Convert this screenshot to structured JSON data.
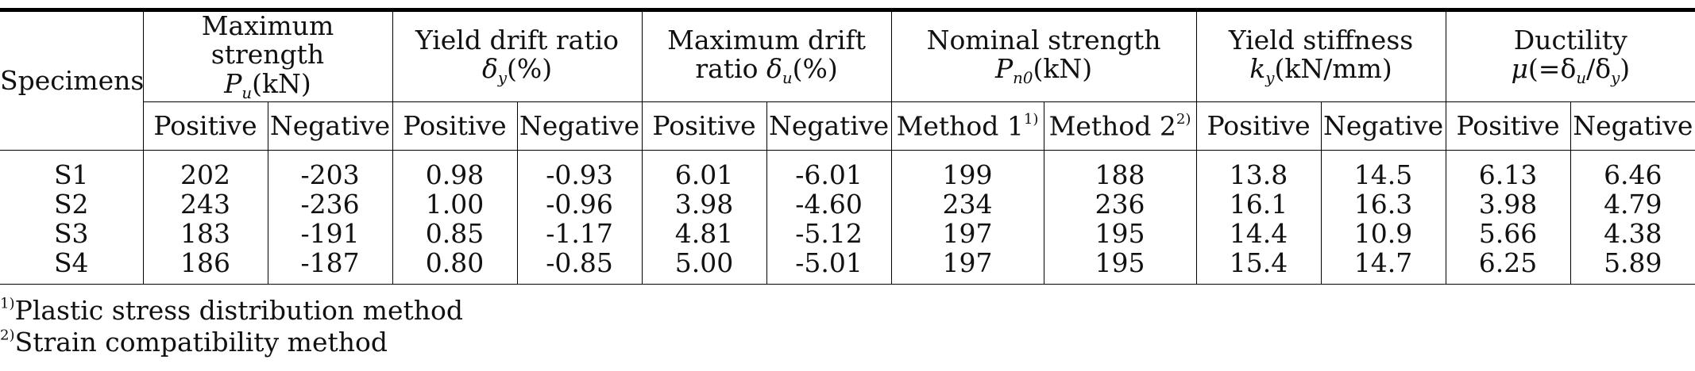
{
  "table": {
    "specimens_header": "Specimens",
    "groups": [
      {
        "line1": "Maximum strength",
        "sym": "P",
        "sub": "u",
        "unit": "(kN)",
        "sym_prefix": ""
      },
      {
        "line1": "Yield drift ratio",
        "sym": "δ",
        "sub": "y",
        "unit": "(%)",
        "sym_prefix": ""
      },
      {
        "line1": "Maximum drift",
        "sym": "δ",
        "sub": "u",
        "unit": "(%)",
        "sym_prefix": "ratio "
      },
      {
        "line1": "Nominal strength",
        "sym": "P",
        "sub": "n0",
        "unit": "(kN)",
        "sym_prefix": ""
      },
      {
        "line1": "Yield stiffness",
        "sym": "k",
        "sub": "y",
        "unit": "(kN/mm)",
        "sym_prefix": ""
      },
      {
        "line1": "Ductility",
        "sym": "μ",
        "sub": "",
        "unit": "(=δ",
        "sub2": "u",
        "unit2": "/δ",
        "sub3": "y",
        "unit3": ")",
        "sym_prefix": ""
      }
    ],
    "subheaders": [
      "Positive",
      "Negative",
      "Positive",
      "Negative",
      "Positive",
      "Negative",
      "Method 1",
      "Method 2",
      "Positive",
      "Negative",
      "Positive",
      "Negative"
    ],
    "method1_sup": "1)",
    "method2_sup": "2)",
    "rows": [
      {
        "specimen": "S1",
        "values": [
          "202",
          "-203",
          "0.98",
          "-0.93",
          "6.01",
          "-6.01",
          "199",
          "188",
          "13.8",
          "14.5",
          "6.13",
          "6.46"
        ]
      },
      {
        "specimen": "S2",
        "values": [
          "243",
          "-236",
          "1.00",
          "-0.96",
          "3.98",
          "-4.60",
          "234",
          "236",
          "16.1",
          "16.3",
          "3.98",
          "4.79"
        ]
      },
      {
        "specimen": "S3",
        "values": [
          "183",
          "-191",
          "0.85",
          "-1.17",
          "4.81",
          "-5.12",
          "197",
          "195",
          "14.4",
          "10.9",
          "5.66",
          "4.38"
        ]
      },
      {
        "specimen": "S4",
        "values": [
          "186",
          "-187",
          "0.80",
          "-0.85",
          "5.00",
          "-5.01",
          "197",
          "195",
          "15.4",
          "14.7",
          "6.25",
          "5.89"
        ]
      }
    ]
  },
  "notes": [
    {
      "sup": "1)",
      "text": "Plastic stress distribution method"
    },
    {
      "sup": "2)",
      "text": "Strain compatibility method"
    }
  ]
}
